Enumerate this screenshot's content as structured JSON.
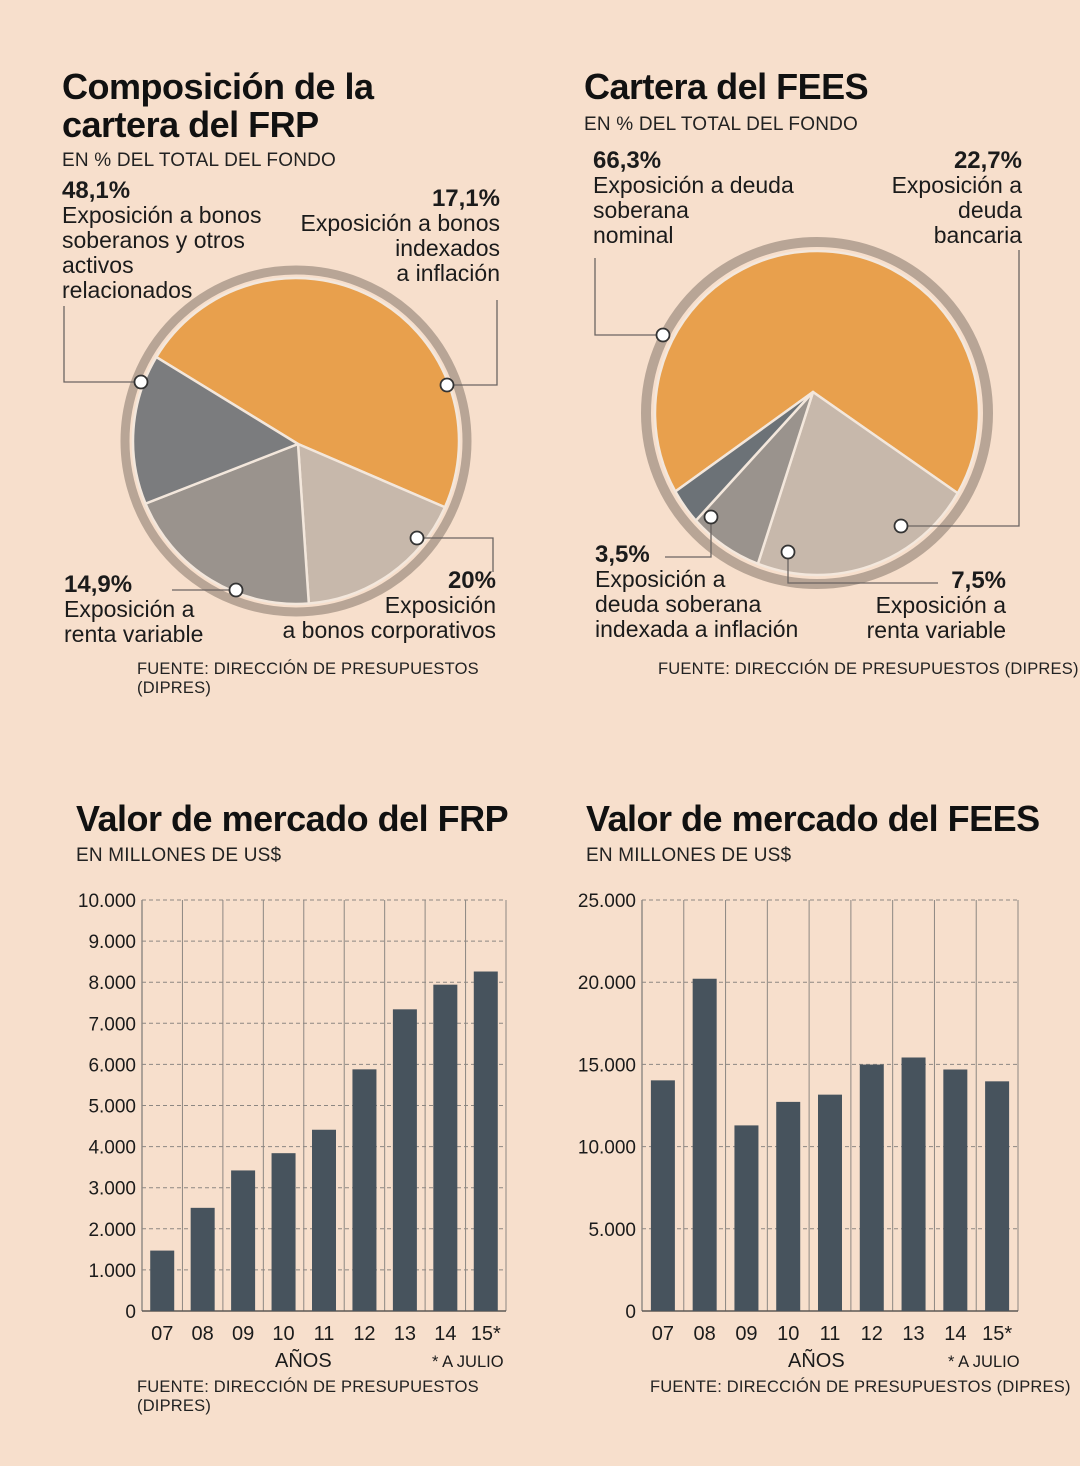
{
  "frp_pie": {
    "title_line1": "Composición de la",
    "title_line2": "cartera del FRP",
    "subtitle": "EN % DEL TOTAL DEL FONDO",
    "source": "FUENTE: DIRECCIÓN DE PRESUPUESTOS (DIPRES)"
  },
  "fees_pie": {
    "title": "Cartera del FEES",
    "subtitle": "EN % DEL TOTAL DEL FONDO",
    "source": "FUENTE: DIRECCIÓN DE PRESUPUESTOS (DIPRES)"
  },
  "frp_bar": {
    "title": "Valor de mercado del FRP",
    "subtitle": "EN MILLONES DE US$",
    "xlabel": "AÑOS",
    "note": "* A JULIO",
    "source": "FUENTE: DIRECCIÓN DE PRESUPUESTOS (DIPRES)"
  },
  "fees_bar": {
    "title": "Valor de mercado del FEES",
    "subtitle": "EN MILLONES DE US$",
    "xlabel": "AÑOS",
    "note": "* A JULIO",
    "source": "FUENTE: DIRECCIÓN DE PRESUPUESTOS (DIPRES)"
  },
  "colors": {
    "orange": "#e8a04d",
    "light": "#c7b8ab",
    "mid": "#9a938d",
    "dark": "#7b7c7e",
    "darker": "#6c7277",
    "ring": "#b8a596",
    "bar": "#47535d",
    "background": "#f7dfcc"
  },
  "chart_data": [
    {
      "type": "pie",
      "slices": [
        {
          "label": "Exposición a bonos soberanos y otros activos relacionados",
          "percent": "48,1%",
          "value": 48.1,
          "color": "#e8a04d"
        },
        {
          "label": "Exposición a bonos indexados a inflación",
          "percent": "17,1%",
          "value": 17.1,
          "color": "#c7b8ab"
        },
        {
          "label": "Exposición a bonos corporativos",
          "percent": "20%",
          "value": 20.0,
          "color": "#9a938d"
        },
        {
          "label": "Exposición a renta variable",
          "percent": "14,9%",
          "value": 14.9,
          "color": "#7b7c7e"
        }
      ]
    },
    {
      "type": "pie",
      "slices": [
        {
          "label": "Exposición a deuda soberana nominal",
          "percent": "66,3%",
          "value": 66.3,
          "color": "#e8a04d"
        },
        {
          "label": "Exposición a deuda bancaria",
          "percent": "22,7%",
          "value": 22.7,
          "color": "#c7b8ab"
        },
        {
          "label": "Exposición a renta variable",
          "percent": "7,5%",
          "value": 7.5,
          "color": "#9a938d"
        },
        {
          "label": "Exposición a deuda soberana indexada a inflación",
          "percent": "3,5%",
          "value": 3.5,
          "color": "#6c7277"
        }
      ]
    },
    {
      "type": "bar",
      "categories": [
        "07",
        "08",
        "09",
        "10",
        "11",
        "12",
        "13",
        "14",
        "15*"
      ],
      "values": [
        1470,
        2510,
        3420,
        3840,
        4410,
        5880,
        7340,
        7940,
        8260
      ],
      "ylim": [
        0,
        10000
      ],
      "yticks": [
        "0",
        "1.000",
        "2.000",
        "3.000",
        "4.000",
        "5.000",
        "6.000",
        "7.000",
        "8.000",
        "9.000",
        "10.000"
      ],
      "grid": true
    },
    {
      "type": "bar",
      "categories": [
        "07",
        "08",
        "09",
        "10",
        "11",
        "12",
        "13",
        "14",
        "15*"
      ],
      "values": [
        14030,
        20210,
        11290,
        12720,
        13160,
        14990,
        15420,
        14690,
        13970
      ],
      "ylim": [
        0,
        25000
      ],
      "yticks": [
        "0",
        "5.000",
        "10.000",
        "15.000",
        "20.000",
        "25.000"
      ],
      "grid": true
    }
  ]
}
